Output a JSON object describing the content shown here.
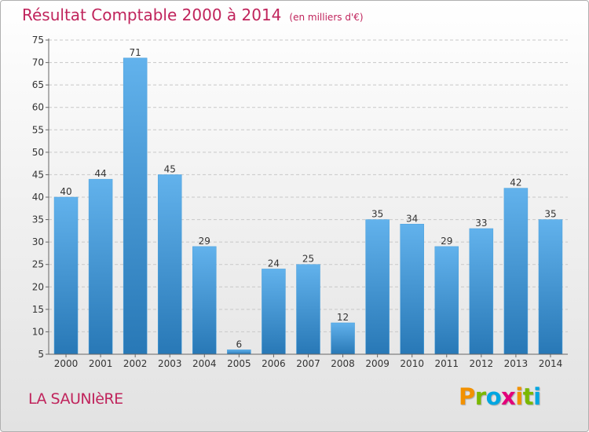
{
  "header": {
    "title": "Résultat Comptable 2000 à 2014",
    "subtitle": "(en milliers d'€)"
  },
  "footer": {
    "commune": "LA SAUNIèRE",
    "logo_letters": [
      "P",
      "r",
      "o",
      "x",
      "i",
      "t",
      "i"
    ],
    "logo_colors": [
      "#f29100",
      "#7ab800",
      "#00a6e1",
      "#e2007a",
      "#f29100",
      "#7ab800",
      "#00a6e1"
    ]
  },
  "chart_data": {
    "type": "bar",
    "categories": [
      "2000",
      "2001",
      "2002",
      "2003",
      "2004",
      "2005",
      "2006",
      "2007",
      "2008",
      "2009",
      "2010",
      "2011",
      "2012",
      "2013",
      "2014"
    ],
    "values": [
      40,
      44,
      71,
      45,
      29,
      6,
      24,
      25,
      12,
      35,
      34,
      29,
      33,
      42,
      35
    ],
    "ylim": [
      5,
      75
    ],
    "yticks": [
      5,
      10,
      15,
      20,
      25,
      30,
      35,
      40,
      45,
      50,
      55,
      60,
      65,
      70,
      75
    ],
    "grid": true,
    "bar_color_top": "#62b2ec",
    "bar_color_bottom": "#2878b6",
    "grid_color": "#c8c8c8"
  }
}
